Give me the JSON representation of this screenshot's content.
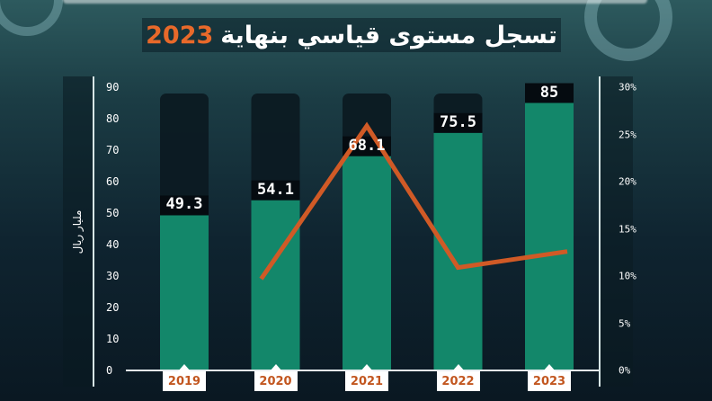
{
  "header": {
    "title_main": "تسجل مستوى قياسي بنهاية",
    "title_year": "2023"
  },
  "colors": {
    "bar": "#13876a",
    "bar_dark": "#0c1a22",
    "line": "#d05a26",
    "year_badge_text": "#c2561f"
  },
  "chart_data": {
    "type": "bar",
    "categories": [
      "2019",
      "2020",
      "2021",
      "2022",
      "2023"
    ],
    "values": [
      49.3,
      54.1,
      68.1,
      75.5,
      85
    ],
    "value_labels": [
      "49.3",
      "54.1",
      "68.1",
      "75.5",
      "85"
    ],
    "ylabel": "مليار ريال",
    "ylim": [
      0,
      90
    ],
    "yticks": [
      "0",
      "10",
      "20",
      "30",
      "40",
      "50",
      "60",
      "70",
      "80",
      "90"
    ],
    "y2lim": [
      0,
      30
    ],
    "y2ticks": [
      "0%",
      "5%",
      "10%",
      "15%",
      "20%",
      "25%",
      "30%"
    ],
    "line_series": {
      "type": "line",
      "axis": "right",
      "x": [
        "2020",
        "2021",
        "2022",
        "2023"
      ],
      "values": [
        9.7,
        25.9,
        10.9,
        12.6
      ]
    },
    "grid": false,
    "legend": "none"
  }
}
